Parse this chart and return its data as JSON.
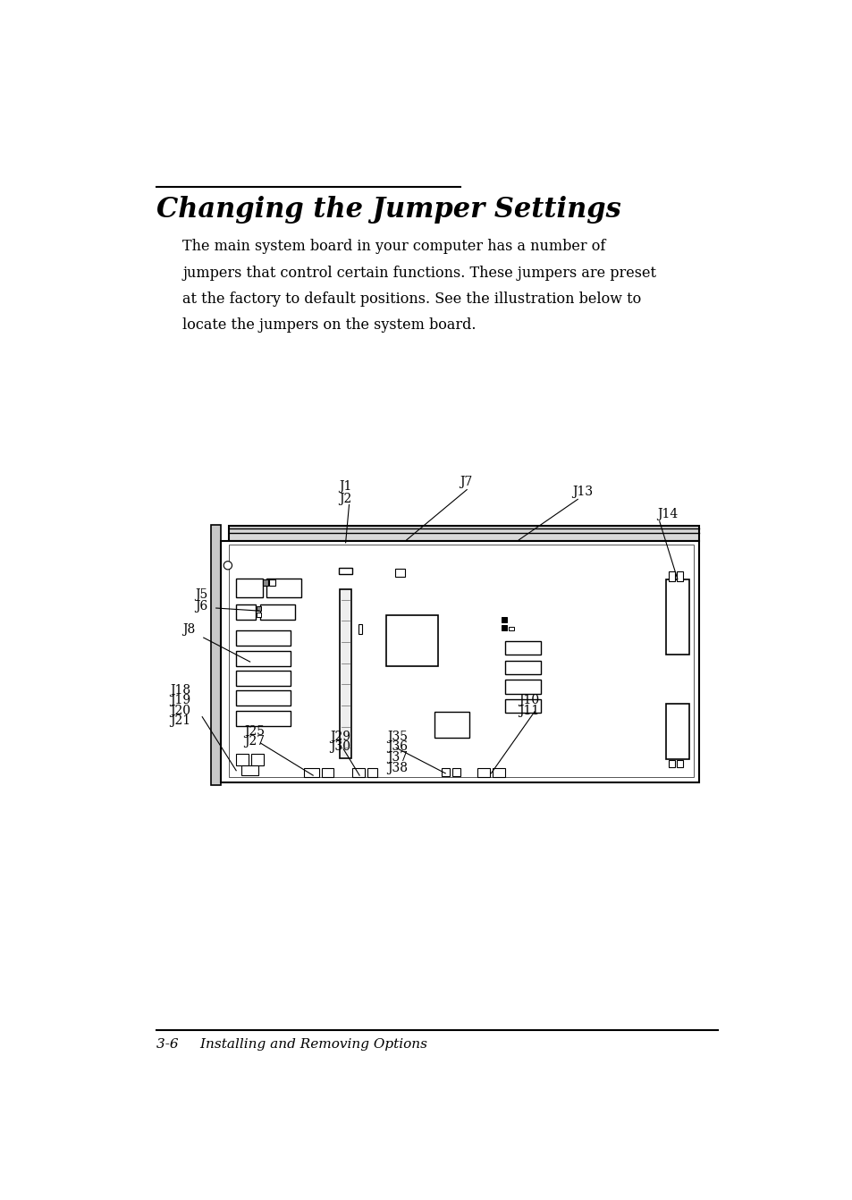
{
  "title": "Changing the Jumper Settings",
  "body_text": "The main system board in your computer has a number of\njumpers that control certain functions. These jumpers are preset\nat the factory to default positions. See the illustration below to\nlocate the jumpers on the system board.",
  "footer_text": "3-6     Installing and Removing Options",
  "bg_color": "#ffffff",
  "text_color": "#000000",
  "page_width": 9.54,
  "page_height": 13.42
}
